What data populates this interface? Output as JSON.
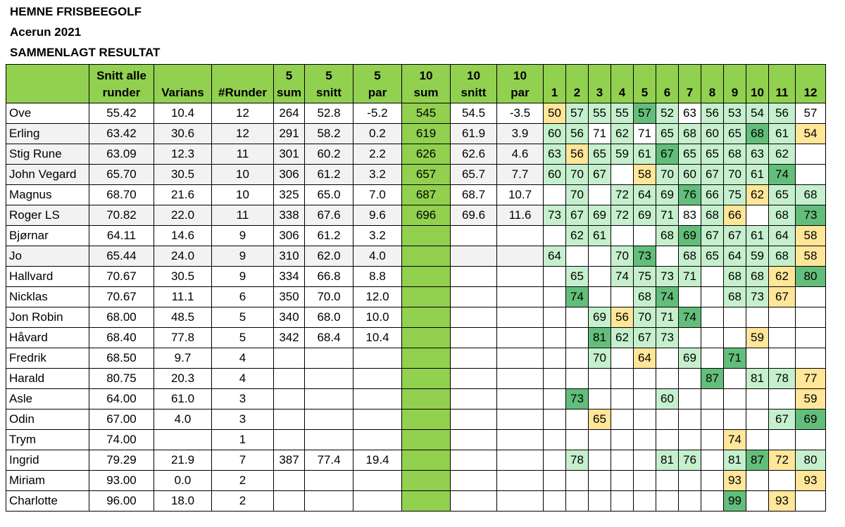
{
  "titles": [
    "HEMNE FRISBEEGOLF",
    "Acerun 2021",
    "SAMMENLAGT RESULTAT"
  ],
  "headers": {
    "name": "",
    "stats": [
      [
        "Snitt alle",
        "runder"
      ],
      [
        "",
        "Varians"
      ],
      [
        "",
        "#Runder"
      ],
      [
        "5",
        "sum"
      ],
      [
        "5",
        "snitt"
      ],
      [
        "5",
        "par"
      ],
      [
        "10",
        "sum"
      ],
      [
        "10",
        "snitt"
      ],
      [
        "10",
        "par"
      ]
    ],
    "rounds": [
      "1",
      "2",
      "3",
      "4",
      "5",
      "6",
      "7",
      "8",
      "9",
      "10",
      "11",
      "12"
    ]
  },
  "players": [
    {
      "name": "Ove",
      "stats": [
        "55.42",
        "10.4",
        "12",
        "264",
        "52.8",
        "-5.2",
        "545",
        "54.5",
        "-3.5"
      ],
      "rounds": [
        [
          "50",
          "y"
        ],
        [
          "57",
          "l"
        ],
        [
          "55",
          "l"
        ],
        [
          "55",
          "l"
        ],
        [
          "57",
          "d"
        ],
        [
          "52",
          "l"
        ],
        [
          "63",
          ""
        ],
        [
          "56",
          "l"
        ],
        [
          "53",
          "l"
        ],
        [
          "54",
          "l"
        ],
        [
          "56",
          "l"
        ],
        [
          "57",
          ""
        ]
      ]
    },
    {
      "name": "Erling",
      "stats": [
        "63.42",
        "30.6",
        "12",
        "291",
        "58.2",
        "0.2",
        "619",
        "61.9",
        "3.9"
      ],
      "rounds": [
        [
          "60",
          "l"
        ],
        [
          "56",
          "l"
        ],
        [
          "71",
          ""
        ],
        [
          "62",
          "l"
        ],
        [
          "71",
          ""
        ],
        [
          "65",
          "l"
        ],
        [
          "68",
          "l"
        ],
        [
          "60",
          "l"
        ],
        [
          "65",
          "l"
        ],
        [
          "68",
          "d"
        ],
        [
          "61",
          "l"
        ],
        [
          "54",
          "y"
        ]
      ]
    },
    {
      "name": "Stig Rune",
      "stats": [
        "63.09",
        "12.3",
        "11",
        "301",
        "60.2",
        "2.2",
        "626",
        "62.6",
        "4.6"
      ],
      "rounds": [
        [
          "63",
          "l"
        ],
        [
          "56",
          "y"
        ],
        [
          "65",
          "l"
        ],
        [
          "59",
          "l"
        ],
        [
          "61",
          "l"
        ],
        [
          "67",
          "d"
        ],
        [
          "65",
          "l"
        ],
        [
          "65",
          "l"
        ],
        [
          "68",
          "l"
        ],
        [
          "63",
          "l"
        ],
        [
          "62",
          "l"
        ],
        [
          "",
          ""
        ]
      ]
    },
    {
      "name": "John Vegard",
      "stats": [
        "65.70",
        "30.5",
        "10",
        "306",
        "61.2",
        "3.2",
        "657",
        "65.7",
        "7.7"
      ],
      "rounds": [
        [
          "60",
          "l"
        ],
        [
          "70",
          "l"
        ],
        [
          "67",
          "l"
        ],
        [
          "",
          ""
        ],
        [
          "58",
          "y"
        ],
        [
          "70",
          "l"
        ],
        [
          "60",
          "l"
        ],
        [
          "67",
          "l"
        ],
        [
          "70",
          "l"
        ],
        [
          "61",
          "l"
        ],
        [
          "74",
          "d"
        ],
        [
          "",
          ""
        ]
      ]
    },
    {
      "name": "Magnus",
      "stats": [
        "68.70",
        "21.6",
        "10",
        "325",
        "65.0",
        "7.0",
        "687",
        "68.7",
        "10.7"
      ],
      "rounds": [
        [
          "",
          ""
        ],
        [
          "70",
          "l"
        ],
        [
          "",
          ""
        ],
        [
          "72",
          "l"
        ],
        [
          "64",
          "l"
        ],
        [
          "69",
          "l"
        ],
        [
          "76",
          "d"
        ],
        [
          "66",
          "l"
        ],
        [
          "75",
          "l"
        ],
        [
          "62",
          "y"
        ],
        [
          "65",
          "l"
        ],
        [
          "68",
          "l"
        ]
      ]
    },
    {
      "name": "Roger LS",
      "stats": [
        "70.82",
        "22.0",
        "11",
        "338",
        "67.6",
        "9.6",
        "696",
        "69.6",
        "11.6"
      ],
      "rounds": [
        [
          "73",
          "l"
        ],
        [
          "67",
          "l"
        ],
        [
          "69",
          "l"
        ],
        [
          "72",
          "l"
        ],
        [
          "69",
          "l"
        ],
        [
          "71",
          "l"
        ],
        [
          "83",
          ""
        ],
        [
          "68",
          "l"
        ],
        [
          "66",
          "y"
        ],
        [
          "",
          ""
        ],
        [
          "68",
          "l"
        ],
        [
          "73",
          "d"
        ]
      ]
    },
    {
      "name": "Bjørnar",
      "stats": [
        "64.11",
        "14.6",
        "9",
        "306",
        "61.2",
        "3.2",
        "",
        "",
        ""
      ],
      "rounds": [
        [
          "",
          ""
        ],
        [
          "62",
          "l"
        ],
        [
          "61",
          "l"
        ],
        [
          "",
          ""
        ],
        [
          "",
          ""
        ],
        [
          "68",
          "l"
        ],
        [
          "69",
          "d"
        ],
        [
          "67",
          "l"
        ],
        [
          "67",
          "l"
        ],
        [
          "61",
          "l"
        ],
        [
          "64",
          "l"
        ],
        [
          "58",
          "y"
        ]
      ]
    },
    {
      "name": "Jo",
      "stats": [
        "65.44",
        "24.0",
        "9",
        "310",
        "62.0",
        "4.0",
        "",
        "",
        ""
      ],
      "rounds": [
        [
          "64",
          "l"
        ],
        [
          "",
          ""
        ],
        [
          "",
          ""
        ],
        [
          "70",
          "l"
        ],
        [
          "73",
          "d"
        ],
        [
          "",
          ""
        ],
        [
          "68",
          "l"
        ],
        [
          "65",
          "l"
        ],
        [
          "64",
          "l"
        ],
        [
          "59",
          "l"
        ],
        [
          "68",
          "l"
        ],
        [
          "58",
          "y"
        ]
      ]
    },
    {
      "name": "Hallvard",
      "stats": [
        "70.67",
        "30.5",
        "9",
        "334",
        "66.8",
        "8.8",
        "",
        "",
        ""
      ],
      "rounds": [
        [
          "",
          ""
        ],
        [
          "65",
          "l"
        ],
        [
          "",
          ""
        ],
        [
          "74",
          "l"
        ],
        [
          "75",
          "l"
        ],
        [
          "73",
          "l"
        ],
        [
          "71",
          "l"
        ],
        [
          "",
          ""
        ],
        [
          "68",
          "l"
        ],
        [
          "68",
          "l"
        ],
        [
          "62",
          "y"
        ],
        [
          "80",
          "d"
        ]
      ]
    },
    {
      "name": "Nicklas",
      "stats": [
        "70.67",
        "11.1",
        "6",
        "350",
        "70.0",
        "12.0",
        "",
        "",
        ""
      ],
      "rounds": [
        [
          "",
          ""
        ],
        [
          "74",
          "d"
        ],
        [
          "",
          ""
        ],
        [
          "",
          ""
        ],
        [
          "68",
          "l"
        ],
        [
          "74",
          "d"
        ],
        [
          "",
          ""
        ],
        [
          "",
          ""
        ],
        [
          "68",
          "l"
        ],
        [
          "73",
          "l"
        ],
        [
          "67",
          "y"
        ],
        [
          "",
          ""
        ]
      ]
    },
    {
      "name": "Jon Robin",
      "stats": [
        "68.00",
        "48.5",
        "5",
        "340",
        "68.0",
        "10.0",
        "",
        "",
        ""
      ],
      "rounds": [
        [
          "",
          ""
        ],
        [
          "",
          ""
        ],
        [
          "69",
          "l"
        ],
        [
          "56",
          "y"
        ],
        [
          "70",
          "l"
        ],
        [
          "71",
          "l"
        ],
        [
          "74",
          "d"
        ],
        [
          "",
          ""
        ],
        [
          "",
          ""
        ],
        [
          "",
          ""
        ],
        [
          "",
          ""
        ],
        [
          "",
          ""
        ]
      ]
    },
    {
      "name": "Håvard",
      "stats": [
        "68.40",
        "77.8",
        "5",
        "342",
        "68.4",
        "10.4",
        "",
        "",
        ""
      ],
      "rounds": [
        [
          "",
          ""
        ],
        [
          "",
          ""
        ],
        [
          "81",
          "d"
        ],
        [
          "62",
          "l"
        ],
        [
          "67",
          "l"
        ],
        [
          "73",
          "l"
        ],
        [
          "",
          ""
        ],
        [
          "",
          ""
        ],
        [
          "",
          ""
        ],
        [
          "59",
          "y"
        ],
        [
          "",
          ""
        ],
        [
          "",
          ""
        ]
      ]
    },
    {
      "name": "Fredrik",
      "stats": [
        "68.50",
        "9.7",
        "4",
        "",
        "",
        "",
        "",
        "",
        ""
      ],
      "rounds": [
        [
          "",
          ""
        ],
        [
          "",
          ""
        ],
        [
          "70",
          "l"
        ],
        [
          "",
          ""
        ],
        [
          "64",
          "y"
        ],
        [
          "",
          ""
        ],
        [
          "69",
          "l"
        ],
        [
          "",
          ""
        ],
        [
          "71",
          "d"
        ],
        [
          "",
          ""
        ],
        [
          "",
          ""
        ],
        [
          "",
          ""
        ]
      ]
    },
    {
      "name": "Harald",
      "stats": [
        "80.75",
        "20.3",
        "4",
        "",
        "",
        "",
        "",
        "",
        ""
      ],
      "rounds": [
        [
          "",
          ""
        ],
        [
          "",
          ""
        ],
        [
          "",
          ""
        ],
        [
          "",
          ""
        ],
        [
          "",
          ""
        ],
        [
          "",
          ""
        ],
        [
          "",
          ""
        ],
        [
          "87",
          "d"
        ],
        [
          "",
          ""
        ],
        [
          "81",
          "l"
        ],
        [
          "78",
          "l"
        ],
        [
          "77",
          "y"
        ]
      ]
    },
    {
      "name": "Asle",
      "stats": [
        "64.00",
        "61.0",
        "3",
        "",
        "",
        "",
        "",
        "",
        ""
      ],
      "rounds": [
        [
          "",
          ""
        ],
        [
          "73",
          "d"
        ],
        [
          "",
          ""
        ],
        [
          "",
          ""
        ],
        [
          "",
          ""
        ],
        [
          "60",
          "l"
        ],
        [
          "",
          ""
        ],
        [
          "",
          ""
        ],
        [
          "",
          ""
        ],
        [
          "",
          ""
        ],
        [
          "",
          ""
        ],
        [
          "59",
          "y"
        ]
      ]
    },
    {
      "name": "Odin",
      "stats": [
        "67.00",
        "4.0",
        "3",
        "",
        "",
        "",
        "",
        "",
        ""
      ],
      "rounds": [
        [
          "",
          ""
        ],
        [
          "",
          ""
        ],
        [
          "65",
          "y"
        ],
        [
          "",
          ""
        ],
        [
          "",
          ""
        ],
        [
          "",
          ""
        ],
        [
          "",
          ""
        ],
        [
          "",
          ""
        ],
        [
          "",
          ""
        ],
        [
          "",
          ""
        ],
        [
          "67",
          "l"
        ],
        [
          "69",
          "d"
        ]
      ]
    },
    {
      "name": "Trym",
      "stats": [
        "74.00",
        "",
        "1",
        "",
        "",
        "",
        "",
        "",
        ""
      ],
      "rounds": [
        [
          "",
          ""
        ],
        [
          "",
          ""
        ],
        [
          "",
          ""
        ],
        [
          "",
          ""
        ],
        [
          "",
          ""
        ],
        [
          "",
          ""
        ],
        [
          "",
          ""
        ],
        [
          "",
          ""
        ],
        [
          "74",
          "y"
        ],
        [
          "",
          ""
        ],
        [
          "",
          ""
        ],
        [
          "",
          ""
        ]
      ]
    },
    {
      "name": "Ingrid",
      "stats": [
        "79.29",
        "21.9",
        "7",
        "387",
        "77.4",
        "19.4",
        "",
        "",
        ""
      ],
      "rounds": [
        [
          "",
          ""
        ],
        [
          "78",
          "l"
        ],
        [
          "",
          ""
        ],
        [
          "",
          ""
        ],
        [
          "",
          ""
        ],
        [
          "81",
          "l"
        ],
        [
          "76",
          "l"
        ],
        [
          "",
          ""
        ],
        [
          "81",
          "l"
        ],
        [
          "87",
          "d"
        ],
        [
          "72",
          "y"
        ],
        [
          "80",
          "l"
        ]
      ]
    },
    {
      "name": "Miriam",
      "stats": [
        "93.00",
        "0.0",
        "2",
        "",
        "",
        "",
        "",
        "",
        ""
      ],
      "rounds": [
        [
          "",
          ""
        ],
        [
          "",
          ""
        ],
        [
          "",
          ""
        ],
        [
          "",
          ""
        ],
        [
          "",
          ""
        ],
        [
          "",
          ""
        ],
        [
          "",
          ""
        ],
        [
          "",
          ""
        ],
        [
          "93",
          "y"
        ],
        [
          "",
          ""
        ],
        [
          "",
          ""
        ],
        [
          "93",
          "y"
        ]
      ]
    },
    {
      "name": "Charlotte",
      "stats": [
        "96.00",
        "18.0",
        "2",
        "",
        "",
        "",
        "",
        "",
        ""
      ],
      "rounds": [
        [
          "",
          ""
        ],
        [
          "",
          ""
        ],
        [
          "",
          ""
        ],
        [
          "",
          ""
        ],
        [
          "",
          ""
        ],
        [
          "",
          ""
        ],
        [
          "",
          ""
        ],
        [
          "",
          ""
        ],
        [
          "99",
          "d"
        ],
        [
          "",
          ""
        ],
        [
          "93",
          "y"
        ],
        [
          "",
          ""
        ]
      ]
    }
  ],
  "colors": {
    "header": "#92d050",
    "light": "#c6efce",
    "dark": "#63be7b",
    "yellow": "#ffe699"
  }
}
